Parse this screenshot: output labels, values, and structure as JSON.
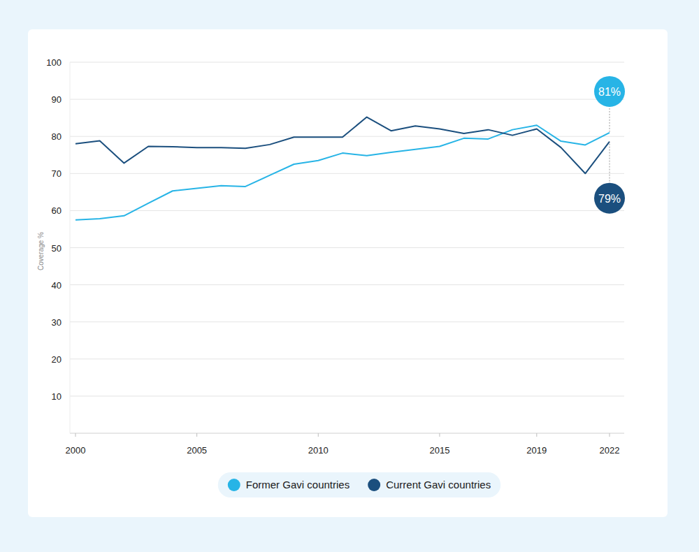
{
  "chart_data": {
    "type": "line",
    "ylabel": "Coverage %",
    "x": [
      2000,
      2001,
      2002,
      2003,
      2004,
      2005,
      2006,
      2007,
      2008,
      2009,
      2010,
      2011,
      2012,
      2013,
      2014,
      2015,
      2016,
      2017,
      2018,
      2019,
      2020,
      2021,
      2022
    ],
    "series": [
      {
        "name": "Former Gavi countries",
        "color": "#27b4e6",
        "values": [
          57.5,
          57.8,
          58.6,
          62,
          65.3,
          66,
          66.7,
          66.5,
          69.5,
          72.5,
          73.5,
          75.5,
          74.8,
          75.7,
          76.5,
          77.3,
          79.5,
          79.3,
          81.8,
          83,
          78.7,
          77.7,
          81
        ],
        "value_labels": [
          null,
          null,
          null,
          null,
          null,
          null,
          null,
          null,
          null,
          null,
          null,
          null,
          null,
          null,
          null,
          null,
          null,
          null,
          null,
          null,
          null,
          null,
          "81%"
        ]
      },
      {
        "name": "Current Gavi countries",
        "color": "#1b4f7e",
        "values": [
          78,
          78.8,
          72.8,
          77.3,
          77.2,
          77,
          77,
          76.8,
          77.8,
          79.8,
          79.8,
          79.8,
          85.2,
          81.5,
          82.8,
          82,
          80.8,
          81.8,
          80.3,
          82,
          77,
          70,
          78.6
        ],
        "value_labels": [
          null,
          null,
          null,
          null,
          null,
          null,
          null,
          null,
          null,
          null,
          null,
          null,
          null,
          null,
          null,
          null,
          null,
          null,
          null,
          null,
          null,
          null,
          "79%"
        ]
      }
    ],
    "xlim": [
      2000,
      2022
    ],
    "xticks": [
      2000,
      2005,
      2010,
      2015,
      2019,
      2022
    ],
    "ylim": [
      0,
      100
    ],
    "yticks": [
      10,
      20,
      30,
      40,
      50,
      60,
      70,
      80,
      90,
      100
    ],
    "grid": true,
    "legend": "bottom"
  }
}
